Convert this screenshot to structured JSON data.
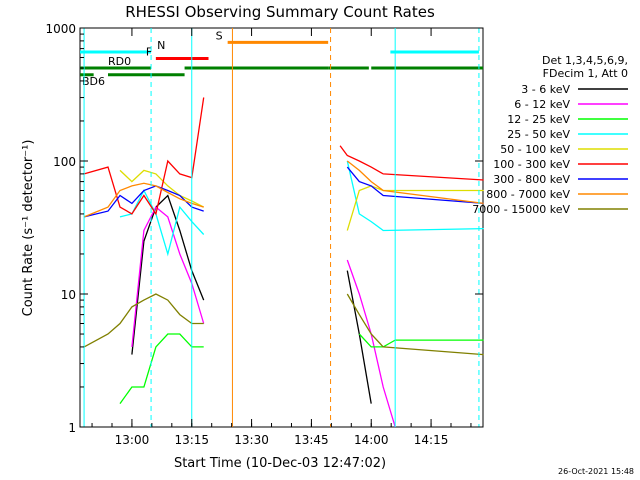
{
  "chart_data": {
    "type": "line",
    "title": "RHESSI Observing Summary Count Rates",
    "xlabel": "Start Time (10-Dec-03 12:47:02)",
    "ylabel": "Count Rate (s⁻¹ detector⁻¹)",
    "ylog": true,
    "ylim": [
      1,
      1000
    ],
    "xlim_minutes": [
      12.783,
      14.467
    ],
    "x_ticks": [
      "13:00",
      "13:15",
      "13:30",
      "13:45",
      "14:00",
      "14:15"
    ],
    "y_ticks": [
      "1",
      "10",
      "100",
      "1000"
    ],
    "legend_header": [
      "Det 1,3,4,5,6,9,",
      "FDecim 1, Att 0"
    ],
    "grid": false,
    "legend_position": "right",
    "series": [
      {
        "name": "3 - 6 keV",
        "color": "#000000",
        "x": [
          12.8,
          12.95,
          13.0,
          13.05,
          13.1,
          13.15,
          13.2,
          13.25,
          13.3,
          13.5,
          13.87,
          13.9,
          13.95,
          14.0,
          14.05,
          14.47
        ],
        "y": [
          null,
          null,
          3.5,
          25,
          45,
          55,
          30,
          15,
          9,
          null,
          null,
          15,
          5,
          1.5,
          null,
          null
        ]
      },
      {
        "name": "6 - 12 keV",
        "color": "#ff00ff",
        "x": [
          12.8,
          12.95,
          13.0,
          13.05,
          13.1,
          13.15,
          13.2,
          13.25,
          13.3,
          13.5,
          13.87,
          13.9,
          13.95,
          14.0,
          14.05,
          14.1,
          14.47
        ],
        "y": [
          null,
          null,
          4,
          30,
          45,
          38,
          20,
          12,
          6,
          null,
          null,
          18,
          10,
          5,
          2,
          1,
          null
        ]
      },
      {
        "name": "12 - 25 keV",
        "color": "#00ff00",
        "x": [
          12.8,
          12.95,
          13.0,
          13.05,
          13.1,
          13.15,
          13.2,
          13.25,
          13.3,
          13.5,
          13.87,
          13.95,
          14.0,
          14.05,
          14.1,
          14.47
        ],
        "y": [
          null,
          1.5,
          2,
          2,
          4,
          5,
          5,
          4,
          4,
          null,
          null,
          5,
          4,
          4,
          4.5,
          4.5
        ]
      },
      {
        "name": "25 - 50 keV",
        "color": "#00ffff",
        "x": [
          12.8,
          12.95,
          13.0,
          13.05,
          13.1,
          13.15,
          13.2,
          13.25,
          13.3,
          13.5,
          13.87,
          13.9,
          13.95,
          14.0,
          14.05,
          14.47
        ],
        "y": [
          null,
          38,
          40,
          60,
          40,
          20,
          45,
          35,
          28,
          null,
          null,
          100,
          40,
          35,
          30,
          31
        ]
      },
      {
        "name": "50 - 100 keV",
        "color": "#dddd00",
        "x": [
          12.8,
          12.9,
          12.95,
          13.0,
          13.05,
          13.1,
          13.15,
          13.2,
          13.25,
          13.3,
          13.5,
          13.87,
          13.9,
          13.95,
          14.0,
          14.05,
          14.47
        ],
        "y": [
          null,
          null,
          85,
          70,
          85,
          80,
          65,
          55,
          50,
          45,
          null,
          null,
          30,
          60,
          65,
          60,
          60
        ]
      },
      {
        "name": "100 - 300 keV",
        "color": "#ff0000",
        "x": [
          12.8,
          12.9,
          12.95,
          13.0,
          13.05,
          13.1,
          13.15,
          13.2,
          13.25,
          13.3,
          13.5,
          13.87,
          13.9,
          13.95,
          14.0,
          14.05,
          14.47
        ],
        "y": [
          80,
          90,
          45,
          40,
          55,
          40,
          100,
          80,
          75,
          300,
          null,
          130,
          110,
          100,
          90,
          80,
          72
        ]
      },
      {
        "name": "300 - 800 keV",
        "color": "#0000ff",
        "x": [
          12.8,
          12.9,
          12.95,
          13.0,
          13.05,
          13.1,
          13.15,
          13.2,
          13.25,
          13.3,
          13.5,
          13.87,
          13.9,
          13.95,
          14.0,
          14.05,
          14.47
        ],
        "y": [
          38,
          42,
          55,
          48,
          60,
          65,
          60,
          55,
          45,
          42,
          null,
          null,
          90,
          70,
          65,
          55,
          48
        ]
      },
      {
        "name": "800 - 7000 keV",
        "color": "#ff8800",
        "x": [
          12.8,
          12.9,
          12.95,
          13.0,
          13.05,
          13.1,
          13.15,
          13.2,
          13.25,
          13.3,
          13.5,
          13.87,
          13.9,
          13.95,
          14.0,
          14.05,
          14.47
        ],
        "y": [
          38,
          45,
          60,
          65,
          68,
          65,
          58,
          52,
          48,
          45,
          null,
          null,
          100,
          85,
          70,
          60,
          48
        ]
      },
      {
        "name": "7000 - 15000 keV",
        "color": "#808000",
        "x": [
          12.8,
          12.9,
          12.95,
          13.0,
          13.05,
          13.1,
          13.15,
          13.2,
          13.25,
          13.3,
          13.5,
          13.87,
          13.9,
          13.95,
          14.0,
          14.05,
          14.47
        ],
        "y": [
          4,
          5,
          6,
          8,
          9,
          10,
          9,
          7,
          6,
          6,
          null,
          null,
          10,
          7,
          5,
          4,
          3.5
        ]
      }
    ],
    "flags": [
      {
        "label": "N",
        "color": "#00ffff",
        "level": 660,
        "spans": [
          [
            12.783,
            13.08
          ],
          [
            14.08,
            14.45
          ]
        ]
      },
      {
        "label": "S",
        "color": "#ff8800",
        "level": 780,
        "spans": [
          [
            13.4,
            13.82
          ]
        ]
      },
      {
        "label": "F",
        "color": "#ff0000",
        "level": 590,
        "spans": [
          [
            13.1,
            13.32
          ]
        ]
      },
      {
        "label": "RD0",
        "color": "#008000",
        "level": 500,
        "spans": [
          [
            12.783,
            13.08
          ],
          [
            13.22,
            13.82
          ],
          [
            13.82,
            13.99
          ],
          [
            14.0,
            14.467
          ]
        ]
      },
      {
        "label": "BD6",
        "color": "#008000",
        "level": 445,
        "spans": [
          [
            12.783,
            12.84
          ],
          [
            12.9,
            13.22
          ]
        ]
      }
    ],
    "vertical_markers": [
      {
        "x": 12.8,
        "color": "#00ffff",
        "style": "solid"
      },
      {
        "x": 13.08,
        "color": "#00ffff",
        "style": "dashed"
      },
      {
        "x": 13.25,
        "color": "#00ffff",
        "style": "solid"
      },
      {
        "x": 13.42,
        "color": "#ff8800",
        "style": "solid"
      },
      {
        "x": 13.83,
        "color": "#ff8800",
        "style": "dashed"
      },
      {
        "x": 14.1,
        "color": "#00ffff",
        "style": "solid"
      },
      {
        "x": 14.45,
        "color": "#00ffff",
        "style": "dashed"
      }
    ]
  },
  "timestamp": "26-Oct-2021 15:48"
}
